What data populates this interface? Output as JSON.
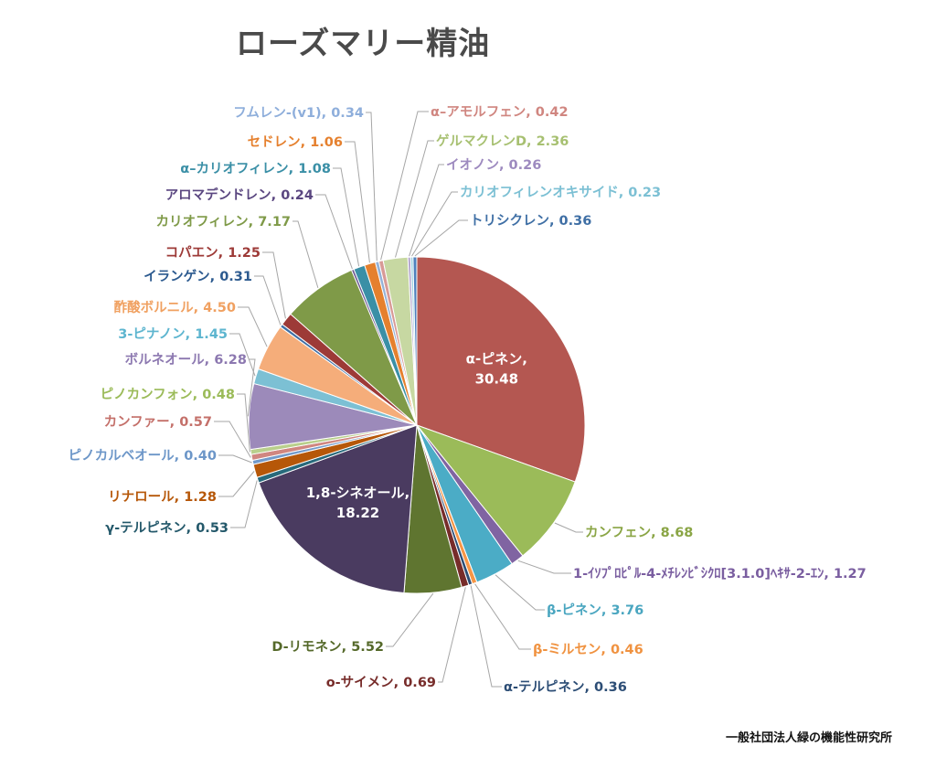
{
  "chart_data": {
    "type": "pie",
    "title": "ローズマリー精油",
    "slices": [
      {
        "name": "α-ピネン",
        "value": 30.48,
        "value_text": "30.48",
        "color": "#b45751"
      },
      {
        "name": "カンフェン",
        "value": 8.68,
        "value_text": "8.68",
        "color": "#9bbb59"
      },
      {
        "name": "1-ｲｿﾌﾟﾛﾋﾟﾙ-4-ﾒﾁﾚﾝﾋﾞｼｸﾛ[3.1.0]ﾍｷｻ-2-ｴﾝ",
        "value": 1.27,
        "value_text": "1.27",
        "color": "#8064a2"
      },
      {
        "name": "β-ピネン",
        "value": 3.76,
        "value_text": "3.76",
        "color": "#4bacc6"
      },
      {
        "name": "β-ミルセン",
        "value": 0.46,
        "value_text": "0.46",
        "color": "#f79646"
      },
      {
        "name": "α-テルピネン",
        "value": 0.36,
        "value_text": "0.36",
        "color": "#2c4d75"
      },
      {
        "name": "o-サイメン",
        "value": 0.69,
        "value_text": "0.69",
        "color": "#772c2a"
      },
      {
        "name": "D-リモネン",
        "value": 5.52,
        "value_text": "5.52",
        "color": "#5f7530"
      },
      {
        "name": "1,8-シネオール",
        "value": 18.22,
        "value_text": "18.22",
        "color": "#4a3b60"
      },
      {
        "name": "γ-テルピネン",
        "value": 0.53,
        "value_text": "0.53",
        "color": "#276a7c"
      },
      {
        "name": "リナロール",
        "value": 1.28,
        "value_text": "1.28",
        "color": "#b65708"
      },
      {
        "name": "ピノカルベオール",
        "value": 0.4,
        "value_text": "0.40",
        "color": "#729aca"
      },
      {
        "name": "カンファー",
        "value": 0.57,
        "value_text": "0.57",
        "color": "#d08680"
      },
      {
        "name": "ピノカンフォン",
        "value": 0.48,
        "value_text": "0.48",
        "color": "#b9cf8c"
      },
      {
        "name": "ボルネオール",
        "value": 6.28,
        "value_text": "6.28",
        "color": "#9c8aba"
      },
      {
        "name": "3-ピナノン",
        "value": 1.45,
        "value_text": "1.45",
        "color": "#7cc0d4"
      },
      {
        "name": "酢酸ボルニル",
        "value": 4.5,
        "value_text": "4.50",
        "color": "#f5ad7a"
      },
      {
        "name": "イランゲン",
        "value": 0.31,
        "value_text": "0.31",
        "color": "#3f6fa5"
      },
      {
        "name": "コパエン",
        "value": 1.25,
        "value_text": "1.25",
        "color": "#9d3a37"
      },
      {
        "name": "カリオフィレン",
        "value": 7.17,
        "value_text": "7.17",
        "color": "#7f9a48"
      },
      {
        "name": "アロマデンドレン",
        "value": 0.24,
        "value_text": "0.24",
        "color": "#6a5590"
      },
      {
        "name": "α–カリオフィレン",
        "value": 1.08,
        "value_text": "1.08",
        "color": "#3a8fa6"
      },
      {
        "name": "セドレン",
        "value": 1.06,
        "value_text": "1.06",
        "color": "#e5802e"
      },
      {
        "name": "フムレン-(v1)",
        "value": 0.34,
        "value_text": "0.34",
        "color": "#94b2d8"
      },
      {
        "name": "α–アモルフェン",
        "value": 0.42,
        "value_text": "0.42",
        "color": "#d89a96"
      },
      {
        "name": "ゲルマクレンD",
        "value": 2.36,
        "value_text": "2.36",
        "color": "#c7d8a2"
      },
      {
        "name": "イオノン",
        "value": 0.26,
        "value_text": "0.26",
        "color": "#b0a2cc"
      },
      {
        "name": "カリオフィレンオキサイド",
        "value": 0.23,
        "value_text": "0.23",
        "color": "#9fd1e0"
      },
      {
        "name": "トリシクレン",
        "value": 0.36,
        "value_text": "0.36",
        "color": "#4f81bd"
      }
    ],
    "label_colors": [
      "#ffffff",
      "#8aa545",
      "#7a5ea0",
      "#4aa6c0",
      "#f09240",
      "#2c4d75",
      "#772c2a",
      "#55692a",
      "#ffffff",
      "#23586a",
      "#b65708",
      "#6c96c8",
      "#c4706a",
      "#9bbb59",
      "#8c78b0",
      "#5db5cf",
      "#f0a060",
      "#2c5a8f",
      "#9d3a37",
      "#7f9a48",
      "#5a4680",
      "#3a8fa6",
      "#e5802e",
      "#8eaedb",
      "#d08680",
      "#a7c071",
      "#9d8abf",
      "#7cc0d4",
      "#3f6fa5"
    ],
    "legend": "none"
  },
  "credit": "一般社団法人緑の機能性研究所"
}
